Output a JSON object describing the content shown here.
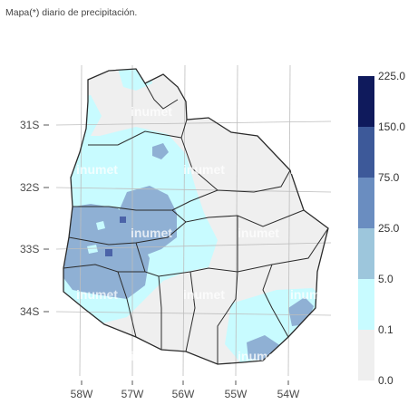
{
  "caption": "Mapa(*) diario de precipitación.",
  "watermark": "inumet",
  "y_axis_labels": [
    "31S",
    "32S",
    "33S",
    "34S"
  ],
  "x_axis_labels": [
    "58W",
    "57W",
    "56W",
    "55W",
    "54W"
  ],
  "legend": {
    "breaks": [
      "0.0",
      "0.1",
      "5.0",
      "25.0",
      "75.0",
      "150.0",
      "225.0"
    ],
    "colors": [
      "#efefef",
      "#c8fbff",
      "#9dc6dc",
      "#6a8dc0",
      "#3d5999",
      "#0f1a5c"
    ]
  },
  "colors": {
    "land": "#efefef",
    "light_rain": "#c8fbff",
    "moderate_rain": "#8fb0d4",
    "heavy_rain": "#4b63a8",
    "border": "#2b2b2b",
    "grid": "#bdbdbd"
  }
}
